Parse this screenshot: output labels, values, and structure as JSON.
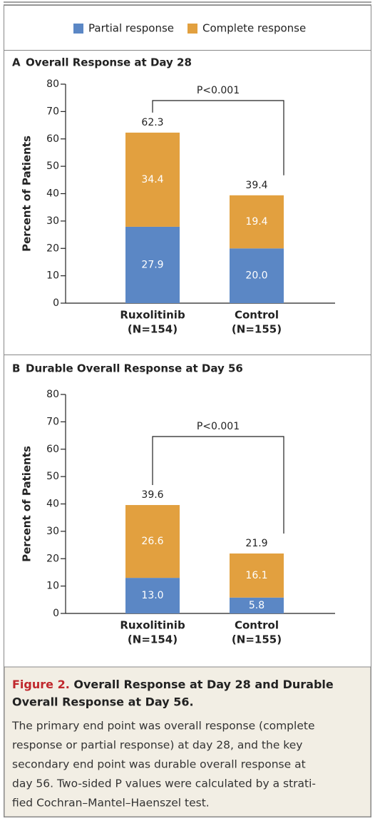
{
  "chart_data": [
    {
      "type": "bar",
      "stacked": true,
      "panel": "A",
      "title": "Overall Response at Day 28",
      "ylabel": "Percent of Patients",
      "categories": [
        "Ruxolitinib",
        "Control"
      ],
      "category_notes": [
        "(N=154)",
        "(N=155)"
      ],
      "series": [
        {
          "name": "Partial response",
          "color": "#5b87c5",
          "values": [
            27.9,
            20.0
          ],
          "value_labels": [
            "27.9",
            "20.0"
          ]
        },
        {
          "name": "Complete response",
          "color": "#e2a03f",
          "values": [
            34.4,
            19.4
          ],
          "value_labels": [
            "34.4",
            "19.4"
          ]
        }
      ],
      "totals": [
        62.3,
        39.4
      ],
      "annotation": "P<0.001",
      "ylim": [
        0,
        80
      ],
      "yticks": [
        0,
        10,
        20,
        30,
        40,
        50,
        60,
        70,
        80
      ]
    },
    {
      "type": "bar",
      "stacked": true,
      "panel": "B",
      "title": "Durable Overall Response at Day 56",
      "ylabel": "Percent of Patients",
      "categories": [
        "Ruxolitinib",
        "Control"
      ],
      "category_notes": [
        "(N=154)",
        "(N=155)"
      ],
      "series": [
        {
          "name": "Partial response",
          "color": "#5b87c5",
          "values": [
            13.0,
            5.8
          ],
          "value_labels": [
            "13.0",
            "5.8"
          ]
        },
        {
          "name": "Complete response",
          "color": "#e2a03f",
          "values": [
            26.6,
            16.1
          ],
          "value_labels": [
            "26.6",
            "16.1"
          ]
        }
      ],
      "totals": [
        39.6,
        21.9
      ],
      "annotation": "P<0.001",
      "ylim": [
        0,
        80
      ],
      "yticks": [
        0,
        10,
        20,
        30,
        40,
        50,
        60,
        70,
        80
      ]
    }
  ],
  "caption": {
    "label": "Figure 2.",
    "title_lines": [
      "Overall Response at Day 28 and Durable",
      "Overall Response at Day 56."
    ],
    "text_lines": [
      "The primary end point was overall response (complete",
      "response or partial response) at day 28, and the key",
      "secondary end point was durable overall response at",
      "day 56. Two-sided P values were calculated by a strati-",
      "fied Cochran–Mantel–Haenszel test."
    ]
  }
}
